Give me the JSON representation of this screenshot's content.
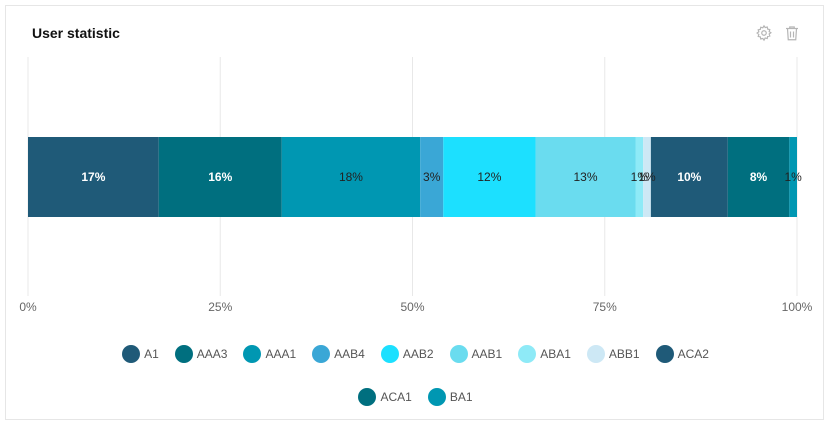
{
  "header": {
    "title": "User statistic",
    "settings_icon": "gear-icon",
    "delete_icon": "trash-icon"
  },
  "chart_data": {
    "type": "bar",
    "orientation": "horizontal-stacked-percent",
    "xlim": [
      0,
      100
    ],
    "x_ticks": [
      "0%",
      "25%",
      "50%",
      "75%",
      "100%"
    ],
    "grid": true,
    "legend_position": "bottom",
    "series": [
      {
        "name": "A1",
        "value": 17,
        "label": "17%",
        "color": "#1f5a78",
        "label_color": "#ffffff"
      },
      {
        "name": "AAA3",
        "value": 16,
        "label": "16%",
        "color": "#006f7f",
        "label_color": "#ffffff"
      },
      {
        "name": "AAA1",
        "value": 18,
        "label": "18%",
        "color": "#0097b2",
        "label_color": "#222222"
      },
      {
        "name": "AAB4",
        "value": 3,
        "label": "3%",
        "color": "#3aa7d6",
        "label_color": "#222222"
      },
      {
        "name": "AAB2",
        "value": 12,
        "label": "12%",
        "color": "#1ce0ff",
        "label_color": "#222222"
      },
      {
        "name": "AAB1",
        "value": 13,
        "label": "13%",
        "color": "#6adcef",
        "label_color": "#222222"
      },
      {
        "name": "ABA1",
        "value": 1,
        "label": "1%",
        "color": "#8eeaf7",
        "label_color": "#222222"
      },
      {
        "name": "ABB1",
        "value": 1,
        "label": "1%",
        "color": "#cde8f5",
        "label_color": "#222222"
      },
      {
        "name": "ACA2",
        "value": 10,
        "label": "10%",
        "color": "#1f5a78",
        "label_color": "#ffffff"
      },
      {
        "name": "ACA1",
        "value": 8,
        "label": "8%",
        "color": "#006f7f",
        "label_color": "#ffffff"
      },
      {
        "name": "BA1",
        "value": 1,
        "label": "1%",
        "color": "#0097b2",
        "label_color": "#222222"
      }
    ]
  }
}
